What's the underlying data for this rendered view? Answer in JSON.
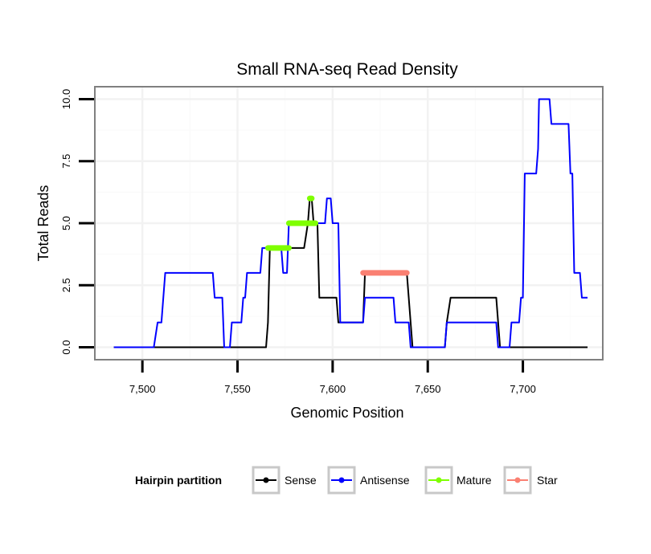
{
  "chart_data": {
    "type": "line",
    "title": "Small RNA-seq Read Density",
    "xlabel": "Genomic Position",
    "ylabel": "Total Reads",
    "xlim": [
      7475,
      7742
    ],
    "ylim": [
      -0.5,
      10.5
    ],
    "x_ticks": [
      7500,
      7550,
      7600,
      7650,
      7700
    ],
    "x_tick_labels": [
      "7,500",
      "7,550",
      "7,600",
      "7,650",
      "7,700"
    ],
    "y_ticks": [
      0,
      2.5,
      5,
      7.5,
      10
    ],
    "y_tick_labels": [
      "0.0",
      "2.5",
      "5.0",
      "7.5",
      "10.0"
    ],
    "grid": true,
    "legend": {
      "title": "Hairpin partition",
      "position": "bottom",
      "entries": [
        {
          "name": "Sense",
          "color": "#000000"
        },
        {
          "name": "Antisense",
          "color": "#0000ff"
        },
        {
          "name": "Mature",
          "color": "#7fff00"
        },
        {
          "name": "Star",
          "color": "#fa8072"
        }
      ]
    },
    "series": [
      {
        "name": "Sense",
        "color": "#000000",
        "x": [
          7485,
          7565,
          7566,
          7567,
          7585,
          7587,
          7588,
          7589,
          7590,
          7592,
          7593,
          7602,
          7603,
          7616,
          7617,
          7639,
          7640,
          7641,
          7642,
          7659,
          7660,
          7662,
          7686,
          7687,
          7688,
          7734
        ],
        "y": [
          0,
          0,
          1,
          4,
          4,
          5,
          6,
          6,
          5,
          5,
          2,
          2,
          1,
          1,
          3,
          3,
          2,
          1,
          0,
          0,
          1,
          2,
          2,
          1,
          0,
          0
        ]
      },
      {
        "name": "Antisense",
        "color": "#0000ff",
        "x": [
          7485,
          7506,
          7508,
          7510,
          7512,
          7513,
          7537,
          7538,
          7542,
          7543,
          7546,
          7547,
          7548,
          7549,
          7552,
          7553,
          7554,
          7555,
          7562,
          7563,
          7573,
          7574,
          7576,
          7577,
          7588,
          7590,
          7596,
          7597,
          7599,
          7600,
          7603,
          7604,
          7616,
          7617,
          7623,
          7624,
          7632,
          7633,
          7640,
          7641,
          7642,
          7659,
          7660,
          7661,
          7686,
          7687,
          7692,
          7693,
          7694,
          7698,
          7699,
          7700,
          7701,
          7707,
          7708,
          7708.5,
          7714,
          7715,
          7724,
          7725,
          7726,
          7727,
          7730,
          7731,
          7734
        ],
        "y": [
          0,
          0,
          1,
          1,
          3,
          3,
          3,
          2,
          2,
          0,
          0,
          1,
          1,
          1,
          1,
          2,
          2,
          3,
          3,
          4,
          4,
          3,
          3,
          5,
          5,
          5,
          5,
          6,
          6,
          5,
          5,
          1,
          1,
          2,
          2,
          2,
          2,
          1,
          1,
          0,
          0,
          0,
          1,
          1,
          1,
          0,
          0,
          0,
          1,
          1,
          2,
          2,
          7,
          7,
          8,
          10,
          10,
          9,
          9,
          7,
          7,
          3,
          3,
          2,
          2
        ]
      }
    ],
    "segments": [
      {
        "name": "Mature",
        "color": "#7fff00",
        "x_start": 7566,
        "x_end": 7577,
        "y": 4
      },
      {
        "name": "Mature",
        "color": "#7fff00",
        "x_start": 7577,
        "x_end": 7591,
        "y": 5
      },
      {
        "name": "Mature",
        "color": "#7fff00",
        "x_start": 7588,
        "x_end": 7589,
        "y": 6
      },
      {
        "name": "Star",
        "color": "#fa8072",
        "x_start": 7616,
        "x_end": 7639,
        "y": 3
      }
    ]
  }
}
